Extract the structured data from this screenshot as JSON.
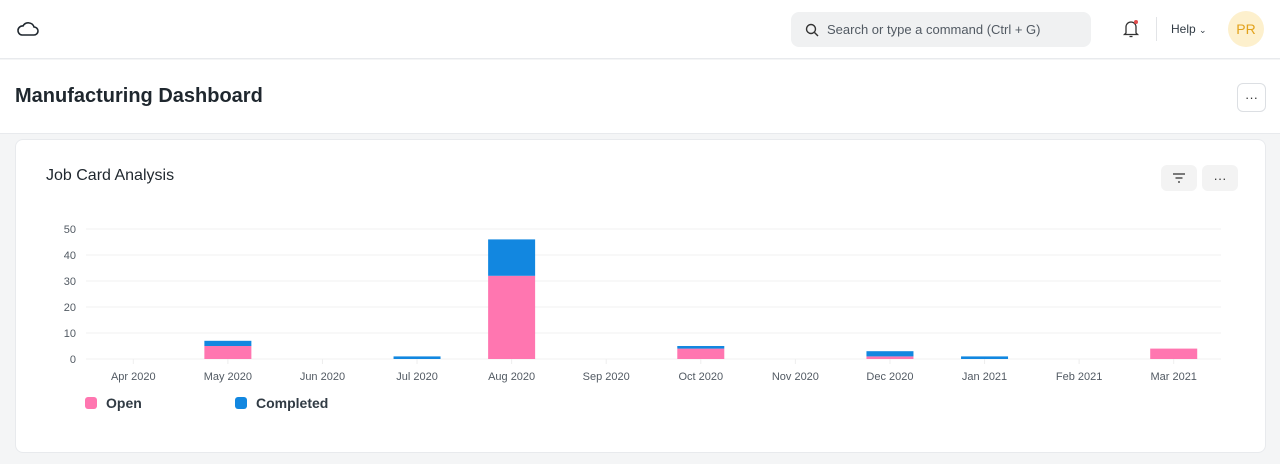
{
  "navbar": {
    "search_placeholder": "Search or type a command (Ctrl + G)",
    "help_label": "Help",
    "avatar_initials": "PR"
  },
  "page": {
    "title": "Manufacturing Dashboard",
    "more_label": "···"
  },
  "card": {
    "title": "Job Card Analysis",
    "more_label": "···"
  },
  "colors": {
    "open": "#ff76b0",
    "completed": "#1287e0"
  },
  "chart_data": {
    "type": "bar",
    "stacked": true,
    "title": "Job Card Analysis",
    "categories": [
      "Apr 2020",
      "May 2020",
      "Jun 2020",
      "Jul 2020",
      "Aug 2020",
      "Sep 2020",
      "Oct 2020",
      "Nov 2020",
      "Dec 2020",
      "Jan 2021",
      "Feb 2021",
      "Mar 2021"
    ],
    "series": [
      {
        "name": "Open",
        "values": [
          0,
          5,
          0,
          0,
          32,
          0,
          4,
          0,
          1,
          0,
          0,
          4
        ]
      },
      {
        "name": "Completed",
        "values": [
          0,
          2,
          0,
          1,
          14,
          0,
          1,
          0,
          2,
          1,
          0,
          0
        ]
      }
    ],
    "yticks": [
      0,
      10,
      20,
      30,
      40,
      50
    ],
    "ylim": [
      0,
      50
    ],
    "grid": true,
    "legend": "bottom-left"
  }
}
